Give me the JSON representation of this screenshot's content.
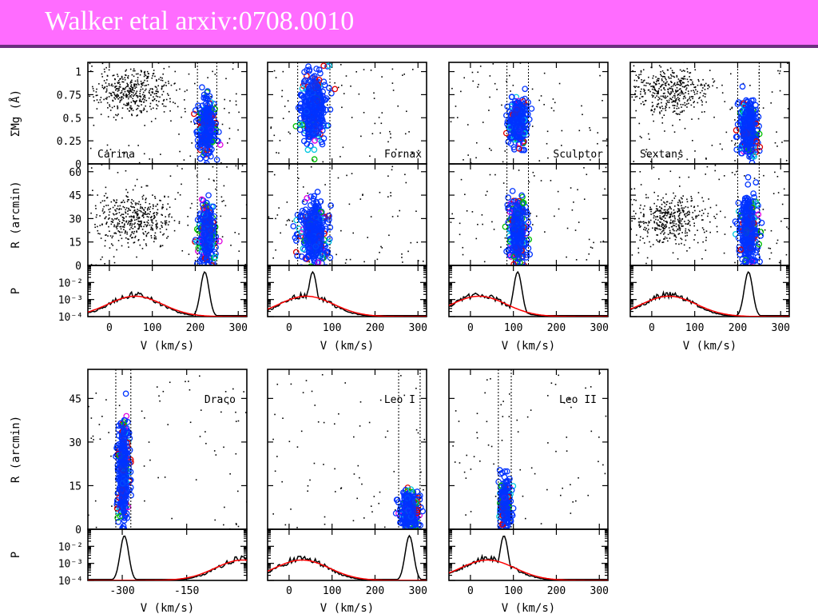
{
  "slide": {
    "title": "Walker etal arxiv:0708.0010"
  },
  "colors": {
    "title_bar": "#ff6cff",
    "title_text": "#ffffff",
    "title_border": "#6c2f7f",
    "members": "#0033ff",
    "cyan": "#00c8e0",
    "green": "#00c000",
    "red": "#e00000",
    "magenta": "#e000e0",
    "field": "#000000",
    "model_curve": "#ff0000"
  },
  "chart_data": [
    {
      "type": "scatter",
      "galaxy": "Carina",
      "xlabel": "V (km/s)",
      "xlim": [
        -50,
        320
      ],
      "xticks": [
        "0",
        "100",
        "200",
        "300"
      ],
      "xtick_values": [
        0,
        100,
        200,
        300
      ],
      "members_v_range": [
        205,
        250
      ],
      "panels": {
        "mg": {
          "ylabel": "ΣMg (Å)",
          "ylim": [
            0,
            1.1
          ],
          "yticks": [
            "0",
            "0.25",
            "0.5",
            "0.75",
            "1"
          ],
          "ytick_values": [
            0,
            0.25,
            0.5,
            0.75,
            1
          ],
          "field_center": [
            55,
            0.78
          ],
          "members_y_range": [
            0.1,
            0.7
          ],
          "label_pos": "bottom-left"
        },
        "r": {
          "ylabel": "R (arcmin)",
          "ylim": [
            0,
            65
          ],
          "yticks": [
            "0",
            "15",
            "30",
            "45",
            "60"
          ],
          "ytick_values": [
            0,
            15,
            30,
            45,
            60
          ],
          "field_center": [
            55,
            30
          ],
          "members_y_range": [
            0,
            40
          ]
        },
        "p": {
          "ylabel": "P",
          "yticks": [
            "10⁻⁴",
            "10⁻³",
            "10⁻²"
          ],
          "member_peak_v": 222,
          "field_peak_v": 60
        }
      }
    },
    {
      "type": "scatter",
      "galaxy": "Fornax",
      "xlabel": "V (km/s)",
      "xlim": [
        -50,
        320
      ],
      "xticks": [
        "0",
        "100",
        "200",
        "300"
      ],
      "xtick_values": [
        0,
        100,
        200,
        300
      ],
      "members_v_range": [
        20,
        95
      ],
      "panels": {
        "mg": {
          "ylabel": "",
          "ylim": [
            0,
            1.1
          ],
          "yticks": [],
          "ytick_values": [
            0,
            0.25,
            0.5,
            0.75,
            1
          ],
          "members_y_range": [
            0.2,
            1.0
          ],
          "label_pos": "bottom-right"
        },
        "r": {
          "ylabel": "",
          "ylim": [
            0,
            65
          ],
          "yticks": [],
          "ytick_values": [
            0,
            15,
            30,
            45,
            60
          ],
          "members_y_range": [
            0,
            40
          ]
        },
        "p": {
          "ylabel": "",
          "yticks": [],
          "member_peak_v": 55,
          "field_peak_v": 40
        }
      }
    },
    {
      "type": "scatter",
      "galaxy": "Sculptor",
      "xlabel": "V (km/s)",
      "xlim": [
        -50,
        320
      ],
      "xticks": [
        "0",
        "100",
        "200",
        "300"
      ],
      "xtick_values": [
        0,
        100,
        200,
        300
      ],
      "members_v_range": [
        85,
        135
      ],
      "panels": {
        "mg": {
          "ylabel": "",
          "ylim": [
            0,
            1.1
          ],
          "yticks": [],
          "ytick_values": [
            0,
            0.25,
            0.5,
            0.75,
            1
          ],
          "members_y_range": [
            0.2,
            0.7
          ],
          "label_pos": "bottom-right"
        },
        "r": {
          "ylabel": "",
          "ylim": [
            0,
            65
          ],
          "yticks": [],
          "ytick_values": [
            0,
            15,
            30,
            45,
            60
          ],
          "members_y_range": [
            0,
            45
          ]
        },
        "p": {
          "ylabel": "",
          "yticks": [],
          "member_peak_v": 110,
          "field_peak_v": 20
        }
      }
    },
    {
      "type": "scatter",
      "galaxy": "Sextans",
      "xlabel": "V (km/s)",
      "xlim": [
        -50,
        320
      ],
      "xticks": [
        "0",
        "100",
        "200",
        "300"
      ],
      "xtick_values": [
        0,
        100,
        200,
        300
      ],
      "members_v_range": [
        200,
        250
      ],
      "panels": {
        "mg": {
          "ylabel": "",
          "ylim": [
            0,
            1.1
          ],
          "yticks": [],
          "ytick_values": [
            0,
            0.25,
            0.5,
            0.75,
            1
          ],
          "field_center": [
            40,
            0.8
          ],
          "members_y_range": [
            0.1,
            0.7
          ],
          "label_pos": "bottom-left"
        },
        "r": {
          "ylabel": "",
          "ylim": [
            0,
            65
          ],
          "yticks": [],
          "ytick_values": [
            0,
            15,
            30,
            45,
            60
          ],
          "field_center": [
            40,
            30
          ],
          "members_y_range": [
            0,
            45
          ]
        },
        "p": {
          "ylabel": "",
          "yticks": [],
          "member_peak_v": 225,
          "field_peak_v": 40
        }
      }
    },
    {
      "type": "scatter",
      "galaxy": "Draco",
      "xlabel": "V (km/s)",
      "xlim": [
        -380,
        -10
      ],
      "xticks": [
        "-300",
        "-150"
      ],
      "xtick_values": [
        -300,
        -150
      ],
      "members_v_range": [
        -315,
        -280
      ],
      "panels": {
        "r": {
          "ylabel": "R (arcmin)",
          "ylim": [
            0,
            55
          ],
          "yticks": [
            "0",
            "15",
            "30",
            "45"
          ],
          "ytick_values": [
            0,
            15,
            30,
            45
          ],
          "members_y_range": [
            0,
            40
          ],
          "label_pos": "top-right"
        },
        "p": {
          "ylabel": "P",
          "yticks": [
            "10⁻⁴",
            "10⁻³",
            "10⁻²"
          ],
          "member_peak_v": -295,
          "field_peak_v": -20
        }
      }
    },
    {
      "type": "scatter",
      "galaxy": "Leo I",
      "xlabel": "V (km/s)",
      "xlim": [
        -50,
        320
      ],
      "xticks": [
        "0",
        "100",
        "200",
        "300"
      ],
      "xtick_values": [
        0,
        100,
        200,
        300
      ],
      "members_v_range": [
        255,
        305
      ],
      "panels": {
        "r": {
          "ylabel": "",
          "ylim": [
            0,
            55
          ],
          "yticks": [],
          "ytick_values": [
            0,
            15,
            30,
            45
          ],
          "members_y_range": [
            0,
            14
          ],
          "label_pos": "top-right"
        },
        "p": {
          "ylabel": "",
          "yticks": [],
          "member_peak_v": 280,
          "field_peak_v": 30
        }
      }
    },
    {
      "type": "scatter",
      "galaxy": "Leo II",
      "xlabel": "V (km/s)",
      "xlim": [
        -50,
        320
      ],
      "xticks": [
        "0",
        "100",
        "200",
        "300"
      ],
      "xtick_values": [
        0,
        100,
        200,
        300
      ],
      "members_v_range": [
        65,
        95
      ],
      "panels": {
        "r": {
          "ylabel": "",
          "ylim": [
            0,
            55
          ],
          "yticks": [],
          "ytick_values": [
            0,
            15,
            30,
            45
          ],
          "members_y_range": [
            0,
            17
          ],
          "label_pos": "top-right"
        },
        "p": {
          "ylabel": "",
          "yticks": [],
          "member_peak_v": 78,
          "field_peak_v": 40
        }
      }
    }
  ]
}
